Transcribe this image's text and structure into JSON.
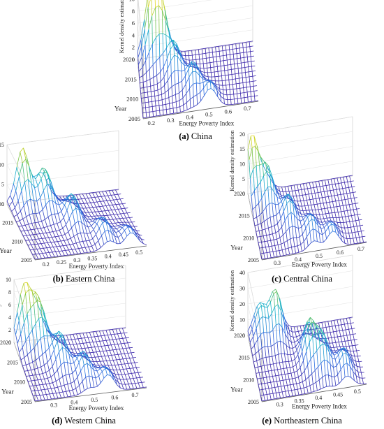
{
  "chart_data": [
    {
      "type": "surface",
      "letter": "(a)",
      "caption": "China",
      "xlabel": "Energy Poverty Index",
      "ylabel": "Year",
      "zlabel": "Kernel density estimation",
      "x_ticks": [
        "0.2",
        "0.3",
        "0.4",
        "0.5",
        "0.6",
        "0.7"
      ],
      "x_range": [
        0.15,
        0.75
      ],
      "y_ticks": [
        "2005",
        "2010",
        "2015",
        "2020"
      ],
      "y_range": [
        2005,
        2020
      ],
      "z_ticks": [
        "0",
        "2",
        "4",
        "6",
        "8",
        "10"
      ],
      "z_range": [
        0,
        11
      ],
      "peaks": [
        {
          "x": 0.22,
          "year": 2020,
          "z": 10.5
        },
        {
          "x": 0.27,
          "year": 2019,
          "z": 8.5
        },
        {
          "x": 0.33,
          "year": 2014,
          "z": 5.5
        },
        {
          "x": 0.42,
          "year": 2010,
          "z": 4.5
        },
        {
          "x": 0.5,
          "year": 2006,
          "z": 3.5
        }
      ]
    },
    {
      "type": "surface",
      "letter": "(b)",
      "caption": "Eastern China",
      "xlabel": "Energy Poverty Index",
      "ylabel": "Year",
      "zlabel": "Kernel density estimation",
      "x_ticks": [
        "0.2",
        "0.25",
        "0.3",
        "0.35",
        "0.4",
        "0.45",
        "0.5"
      ],
      "x_range": [
        0.16,
        0.52
      ],
      "y_ticks": [
        "2005",
        "2010",
        "2015",
        "2020"
      ],
      "y_range": [
        2005,
        2020
      ],
      "z_ticks": [
        "0",
        "5",
        "10",
        "15"
      ],
      "z_range": [
        0,
        15
      ],
      "peaks": [
        {
          "x": 0.21,
          "year": 2020,
          "z": 13.5
        },
        {
          "x": 0.27,
          "year": 2018,
          "z": 9.5
        },
        {
          "x": 0.33,
          "year": 2013,
          "z": 7
        },
        {
          "x": 0.4,
          "year": 2008,
          "z": 5
        },
        {
          "x": 0.47,
          "year": 2006,
          "z": 4
        }
      ]
    },
    {
      "type": "surface",
      "letter": "(c)",
      "caption": "Central China",
      "xlabel": "Energy Poverty Index",
      "ylabel": "Year",
      "zlabel": "Kernel density estimation",
      "x_ticks": [
        "0.3",
        "0.4",
        "0.5",
        "0.6",
        "0.7"
      ],
      "x_range": [
        0.22,
        0.72
      ],
      "y_ticks": [
        "2005",
        "2010",
        "2015",
        "2020"
      ],
      "y_range": [
        2005,
        2020
      ],
      "z_ticks": [
        "0",
        "5",
        "10",
        "15",
        "20"
      ],
      "z_range": [
        0,
        20
      ],
      "peaks": [
        {
          "x": 0.24,
          "year": 2020,
          "z": 19
        },
        {
          "x": 0.3,
          "year": 2017,
          "z": 12
        },
        {
          "x": 0.38,
          "year": 2012,
          "z": 9
        },
        {
          "x": 0.47,
          "year": 2008,
          "z": 7
        },
        {
          "x": 0.56,
          "year": 2006,
          "z": 6
        }
      ]
    },
    {
      "type": "surface",
      "letter": "(d)",
      "caption": "Western China",
      "xlabel": "Energy Poverty Index",
      "ylabel": "Year",
      "zlabel": "Kernel density estimation",
      "x_ticks": [
        "0.3",
        "0.4",
        "0.5",
        "0.6",
        "0.7"
      ],
      "x_range": [
        0.2,
        0.75
      ],
      "y_ticks": [
        "2005",
        "2010",
        "2015",
        "2020"
      ],
      "y_range": [
        2005,
        2020
      ],
      "z_ticks": [
        "0",
        "2",
        "4",
        "6",
        "8",
        "10"
      ],
      "z_range": [
        0,
        10
      ],
      "peaks": [
        {
          "x": 0.25,
          "year": 2020,
          "z": 8.5
        },
        {
          "x": 0.31,
          "year": 2018,
          "z": 7
        },
        {
          "x": 0.38,
          "year": 2013,
          "z": 5
        },
        {
          "x": 0.47,
          "year": 2009,
          "z": 4
        },
        {
          "x": 0.56,
          "year": 2006,
          "z": 3
        }
      ]
    },
    {
      "type": "surface",
      "letter": "(e)",
      "caption": "Northeastern China",
      "xlabel": "Energy Poverty Index",
      "ylabel": "Year",
      "zlabel": "Kernel density estimation",
      "x_ticks": [
        "0.3",
        "0.35",
        "0.4",
        "0.45",
        "0.5"
      ],
      "x_range": [
        0.25,
        0.52
      ],
      "y_ticks": [
        "2005",
        "2010",
        "2015",
        "2020"
      ],
      "y_range": [
        2005,
        2020
      ],
      "z_ticks": [
        "0",
        "10",
        "20",
        "30",
        "40"
      ],
      "z_range": [
        0,
        40
      ],
      "peaks": [
        {
          "x": 0.28,
          "year": 2019,
          "z": 20
        },
        {
          "x": 0.32,
          "year": 2019,
          "z": 28
        },
        {
          "x": 0.39,
          "year": 2012,
          "z": 25
        },
        {
          "x": 0.42,
          "year": 2010,
          "z": 20
        },
        {
          "x": 0.47,
          "year": 2008,
          "z": 15
        }
      ]
    }
  ]
}
